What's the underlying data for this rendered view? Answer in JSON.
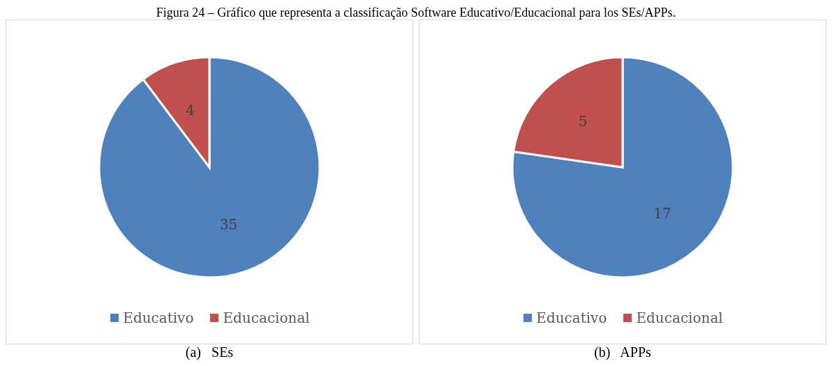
{
  "chart_data": [
    {
      "type": "pie",
      "title": "Figura 24 – Gráfico que representa a classificação Software Educativo/Educacional para los SEs/APPs.",
      "xlabel": "(a)   SEs",
      "categories": [
        "Educativo",
        "Educacional"
      ],
      "values": [
        35,
        4
      ],
      "colors": [
        "#4f81bd",
        "#c0504d"
      ],
      "data_labels": true,
      "legend": "bottom"
    },
    {
      "type": "pie",
      "xlabel": "(b)   APPs",
      "categories": [
        "Educativo",
        "Educacional"
      ],
      "values": [
        17,
        5
      ],
      "colors": [
        "#4f81bd",
        "#c0504d"
      ],
      "data_labels": true,
      "legend": "bottom"
    }
  ]
}
